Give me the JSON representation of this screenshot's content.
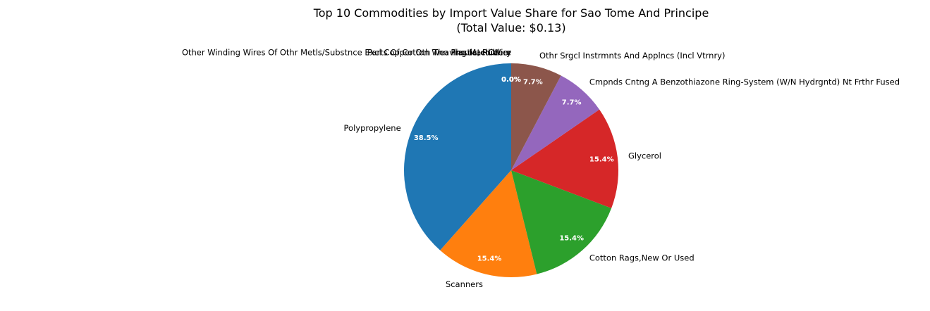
{
  "chart_data": {
    "type": "pie",
    "title": "Top 10 Commodities by Import Value Share for Sao Tome And Principe",
    "subtitle": "(Total Value: $0.13)",
    "slices": [
      {
        "label": "Polypropylene",
        "value": 38.5,
        "pct_label": "38.5%",
        "color": "#1f77b4"
      },
      {
        "label": "Scanners",
        "value": 15.4,
        "pct_label": "15.4%",
        "color": "#ff7f0e"
      },
      {
        "label": "Cotton Rags,New Or Used",
        "value": 15.4,
        "pct_label": "15.4%",
        "color": "#2ca02c"
      },
      {
        "label": "Glycerol",
        "value": 15.4,
        "pct_label": "15.4%",
        "color": "#d62728"
      },
      {
        "label": "Cmpnds Cntng A Benzothiazone Ring-System (W/N Hydrgntd) Nt Frthr Fused",
        "value": 7.7,
        "pct_label": "7.7%",
        "color": "#9467bd"
      },
      {
        "label": "Othr Srgcl Instrmnts And Applncs (Incl Vtrnry)",
        "value": 7.7,
        "pct_label": "7.7%",
        "color": "#8c564b"
      },
      {
        "label": "Other",
        "value": 0.0,
        "pct_label": "0.0%",
        "color": "#e377c2"
      },
      {
        "label": "Parts Of Cotton Weaving Machinery",
        "value": 0.0,
        "pct_label": "0.0%",
        "color": "#7f7f7f"
      },
      {
        "label": "Insulated Wire",
        "value": 0.0,
        "pct_label": "0.0%",
        "color": "#bcbd22"
      },
      {
        "label": "Other Winding Wires Of Othr Metls/Substnce Excl Copper Oth Thn Plastic, Rubber",
        "value": 0.0,
        "pct_label": "0.0%",
        "color": "#17becf"
      }
    ],
    "start_angle": "90 degrees (top)",
    "direction": "counterclockwise",
    "legend": "none"
  }
}
